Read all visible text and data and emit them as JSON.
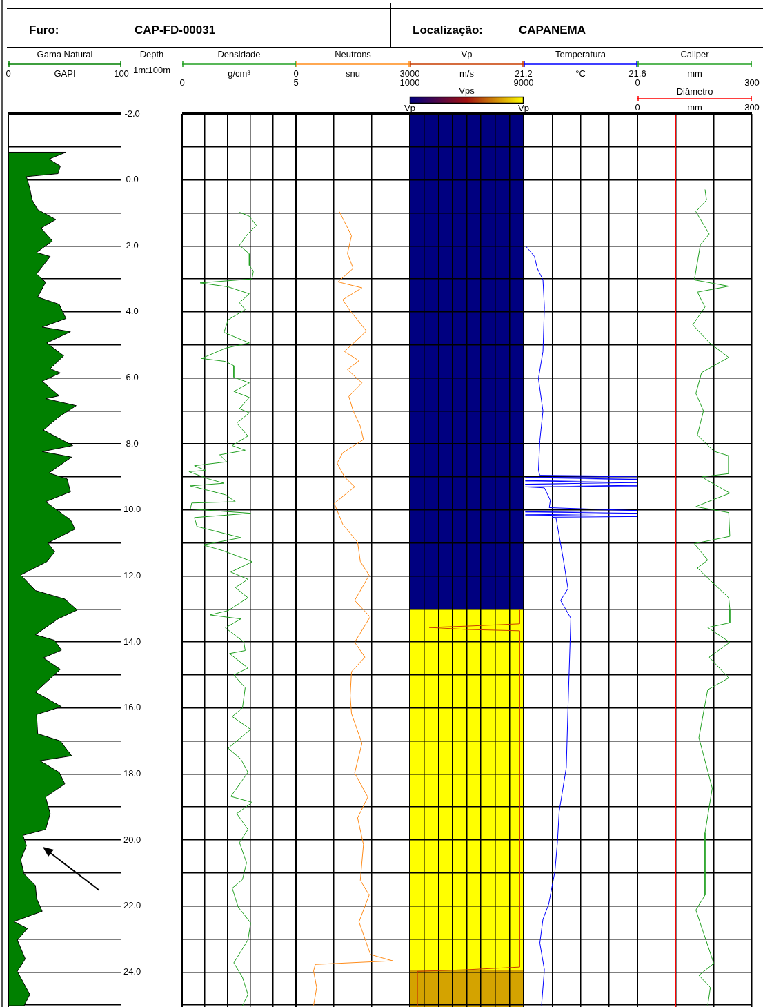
{
  "chart_data": [
    {
      "type": "other",
      "annotations": [
        "Furo:",
        "CAP-FD-00031",
        "Localização:",
        "CAPANEMA"
      ]
    },
    {
      "type": "area",
      "title": "Gama Natural",
      "xlabel": "GAPI",
      "ylabel": "Depth",
      "annotations": [
        "1m:100m"
      ],
      "xlim": [
        0,
        100
      ],
      "xticks": [
        0,
        100
      ],
      "ylim": [
        25.06,
        -2
      ],
      "yticks": [
        {
          "value": -2,
          "label": "-2.0"
        },
        {
          "value": -1,
          "label": null
        },
        {
          "value": 0,
          "label": "0.0"
        },
        {
          "value": 1,
          "label": null
        },
        {
          "value": 2,
          "label": "2.0"
        },
        {
          "value": 3,
          "label": null
        },
        {
          "value": 4,
          "label": "4.0"
        },
        {
          "value": 5,
          "label": null
        },
        {
          "value": 6,
          "label": "6.0"
        },
        {
          "value": 7,
          "label": null
        },
        {
          "value": 8,
          "label": "8.0"
        },
        {
          "value": 9,
          "label": null
        },
        {
          "value": 10,
          "label": "10.0"
        },
        {
          "value": 11,
          "label": null
        },
        {
          "value": 12,
          "label": "12.0"
        },
        {
          "value": 13,
          "label": null
        },
        {
          "value": 14,
          "label": "14.0"
        },
        {
          "value": 15,
          "label": null
        },
        {
          "value": 16,
          "label": "16.0"
        },
        {
          "value": 17,
          "label": null
        },
        {
          "value": 18,
          "label": "18.0"
        },
        {
          "value": 19,
          "label": null
        },
        {
          "value": 20,
          "label": "20.0"
        },
        {
          "value": 21,
          "label": null
        },
        {
          "value": 22,
          "label": "22.0"
        },
        {
          "value": 23,
          "label": null
        },
        {
          "value": 24,
          "label": "24.0"
        },
        {
          "value": 25,
          "label": null
        }
      ],
      "grid": "y",
      "series": [
        {
          "color": "#008000",
          "x": [
            0,
            51,
            36,
            46,
            44,
            16,
            19,
            21,
            26,
            42,
            29,
            39,
            25,
            37,
            25,
            33,
            26,
            45,
            51,
            30,
            55,
            34,
            49,
            37,
            46,
            30,
            45,
            33,
            60,
            44,
            31,
            57,
            30,
            56,
            36,
            52,
            55,
            33,
            55,
            59,
            35,
            41,
            34,
            11,
            24,
            50,
            61,
            44,
            24,
            41,
            47,
            31,
            46,
            24,
            47,
            25,
            26,
            46,
            56,
            28,
            45,
            50,
            33,
            37,
            33,
            13,
            16,
            11,
            14,
            24,
            25,
            30,
            5,
            17,
            8,
            15,
            8,
            19,
            14,
            0
          ],
          "values": [
            -0.84,
            -0.84,
            -0.63,
            -0.42,
            -0.19,
            -0.1,
            0.25,
            0.6,
            0.9,
            1.2,
            1.46,
            1.85,
            2.2,
            2.32,
            2.85,
            3.1,
            3.55,
            3.77,
            4.2,
            4.46,
            4.6,
            4.94,
            5.33,
            5.72,
            5.85,
            6.1,
            6.54,
            6.63,
            6.84,
            7.2,
            7.58,
            8.05,
            8.23,
            8.4,
            8.88,
            9.06,
            9.45,
            9.75,
            10.3,
            10.58,
            11.0,
            11.27,
            11.57,
            11.97,
            12.44,
            12.7,
            13.03,
            13.3,
            13.78,
            13.95,
            14.25,
            14.48,
            14.83,
            15.52,
            15.96,
            16.2,
            16.78,
            17.0,
            17.45,
            17.6,
            17.95,
            18.3,
            18.7,
            19.2,
            19.68,
            19.86,
            20.17,
            20.6,
            21.03,
            21.38,
            21.77,
            22.16,
            22.47,
            22.68,
            23.03,
            23.6,
            23.98,
            24.68,
            25.02,
            25.02
          ]
        }
      ]
    },
    {
      "type": "line",
      "title": "Densidade",
      "xlabel": "g/cm³",
      "xlim": [
        0,
        5
      ],
      "xticks": [
        0,
        {
          "value": 1,
          "label": null
        },
        {
          "value": 2,
          "label": null
        },
        {
          "value": 3,
          "label": null
        },
        {
          "value": 4,
          "label": null
        },
        5
      ],
      "ylim": [
        25.06,
        -2
      ],
      "tick_labels": "x",
      "grid": true,
      "yticks": [
        -2,
        -1,
        0,
        1,
        2,
        3,
        4,
        5,
        6,
        7,
        8,
        9,
        10,
        11,
        12,
        13,
        14,
        15,
        16,
        17,
        18,
        19,
        20,
        21,
        22,
        23,
        24,
        25
      ],
      "series": [
        {
          "color": "#22a022",
          "x": [
            2.52,
            2.95,
            3.26,
            2.89,
            2.52,
            2.95,
            2.95,
            3.13,
            3.07,
            0.79,
            2.02,
            2.95,
            2.52,
            2.77,
            2.02,
            1.84,
            2.95,
            1.9,
            0.85,
            1.9,
            2.27,
            2.27,
            2.95,
            2.27,
            2.95,
            2.52,
            2.95,
            2.4,
            2.89,
            2.2,
            2.77,
            1.65,
            1.96,
            0.54,
            1.04,
            0.3,
            1.16,
            1.84,
            0.36,
            1.9,
            2.34,
            0.42,
            0.36,
            3.01,
            0.54,
            0.65,
            2.58,
            0.92,
            1.78,
            2.95,
            3.08,
            2.14,
            2.89,
            2.34,
            2.89,
            2.02,
            1.22,
            2.58,
            1.9,
            2.71,
            2.77,
            2.08,
            2.89,
            2.27,
            2.77,
            2.65,
            2.2,
            3.01,
            2.02,
            2.58,
            2.89,
            2.14,
            3.08,
            2.4,
            2.89,
            2.52,
            2.83,
            2.65,
            2.2,
            2.46,
            3.01,
            2.89,
            2.27,
            2.65,
            2.89,
            2.65
          ],
          "values": [
            0.98,
            1.1,
            1.38,
            1.63,
            1.98,
            2.24,
            2.59,
            2.76,
            3.0,
            3.12,
            3.24,
            3.45,
            3.72,
            3.93,
            4.24,
            4.62,
            4.94,
            5.1,
            5.41,
            5.5,
            5.63,
            5.98,
            6.15,
            6.41,
            6.59,
            6.93,
            7.06,
            7.37,
            7.76,
            8.05,
            8.19,
            8.33,
            8.54,
            8.66,
            8.8,
            8.84,
            9.06,
            9.19,
            9.27,
            9.54,
            9.75,
            9.79,
            9.97,
            10.1,
            10.23,
            10.5,
            10.84,
            11.06,
            11.23,
            11.53,
            11.57,
            11.88,
            12.1,
            12.35,
            12.66,
            13.05,
            13.18,
            13.3,
            13.57,
            14.0,
            14.26,
            14.35,
            14.79,
            15.0,
            15.39,
            16.0,
            16.26,
            16.65,
            17.22,
            17.55,
            17.95,
            18.68,
            18.86,
            19.2,
            19.68,
            20.08,
            20.69,
            21.2,
            21.46,
            22.03,
            22.51,
            23.03,
            23.72,
            24.16,
            24.68,
            25.02
          ]
        }
      ]
    },
    {
      "type": "line",
      "title": "Neutrons",
      "xlabel": "snu",
      "xlim": [
        0,
        3000
      ],
      "xticks": [
        0,
        {
          "value": 1000,
          "label": null
        },
        {
          "value": 2000,
          "label": null
        },
        3000
      ],
      "ylim": [
        25.06,
        -2
      ],
      "tick_labels": "x",
      "grid": true,
      "yticks": [
        -2,
        -1,
        0,
        1,
        2,
        3,
        4,
        5,
        6,
        7,
        8,
        9,
        10,
        11,
        12,
        13,
        14,
        15,
        16,
        17,
        18,
        19,
        20,
        21,
        22,
        23,
        24,
        25
      ],
      "series": [
        {
          "color": "#ff8c1a",
          "x": [
            1143,
            1464,
            1357,
            1509,
            1107,
            1739,
            1232,
            1411,
            1857,
            1279,
            1661,
            1357,
            1739,
            1393,
            1509,
            1696,
            1779,
            1232,
            1086,
            1279,
            1548,
            1009,
            1232,
            1625,
            1696,
            1929,
            1548,
            1955,
            1548,
            1818,
            1464,
            1429,
            1464,
            1739,
            1548,
            1893,
            1625,
            1779,
            1696,
            1929,
            1661,
            1964,
            2548,
            509,
            464,
            546,
            464
          ],
          "values": [
            0.96,
            1.69,
            2.23,
            2.68,
            3.09,
            3.27,
            3.63,
            3.94,
            4.58,
            5.2,
            5.48,
            5.75,
            6.15,
            6.56,
            7.0,
            7.46,
            7.87,
            8.27,
            8.58,
            9.0,
            9.3,
            9.8,
            10.43,
            10.98,
            11.56,
            11.98,
            12.74,
            13.24,
            14.01,
            14.46,
            14.9,
            15.63,
            16.17,
            17.07,
            17.97,
            18.7,
            19.33,
            20.14,
            21.22,
            21.67,
            22.48,
            23.47,
            23.66,
            23.77,
            23.97,
            24.47,
            25.01
          ]
        }
      ]
    },
    {
      "type": "line",
      "title": "Vp",
      "xlabel": "m/s",
      "xlim": [
        1000,
        9000
      ],
      "xticks": [
        1000,
        {
          "value": 2000,
          "label": null
        },
        {
          "value": 3000,
          "label": null
        },
        {
          "value": 4000,
          "label": null
        },
        {
          "value": 5000,
          "label": null
        },
        {
          "value": 6000,
          "label": null
        },
        {
          "value": 7000,
          "label": null
        },
        {
          "value": 8000,
          "label": null
        },
        9000
      ],
      "ylim": [
        25.06,
        -2
      ],
      "tick_labels": "x",
      "grid": true,
      "clabel": "Vps",
      "clim": [
        1000,
        9000
      ],
      "cticks": [
        {
          "value": 1000,
          "label": "Vp"
        },
        {
          "value": 9000,
          "label": "Vp"
        }
      ],
      "bands": [
        {
          "axis": "y",
          "from": -2,
          "to": 13,
          "color": "#000080"
        },
        {
          "axis": "y",
          "from": 13,
          "to": 23.95,
          "color": "#ffff00"
        },
        {
          "axis": "y",
          "from": 23.95,
          "to": 25.06,
          "color": "#d4a300"
        }
      ],
      "yticks": [
        -2,
        -1,
        0,
        1,
        2,
        3,
        4,
        5,
        6,
        7,
        8,
        9,
        10,
        11,
        12,
        13,
        14,
        15,
        16,
        17,
        18,
        19,
        20,
        21,
        22,
        23,
        24,
        25
      ],
      "series": [
        {
          "color": "#c83c00",
          "x": [
            8714,
            8714,
            5000,
            2362,
            5000,
            8714,
            8714,
            5000,
            1524,
            1524
          ],
          "values": [
            13.0,
            13.45,
            13.52,
            13.56,
            13.62,
            13.66,
            23.85,
            23.93,
            23.98,
            25.05
          ]
        }
      ]
    },
    {
      "type": "line",
      "title": "Temperatura",
      "xlabel": "°C",
      "xlim": [
        21.2,
        21.6
      ],
      "xticks": [
        21.2,
        {
          "value": 21.3,
          "label": null
        },
        {
          "value": 21.4,
          "label": null
        },
        {
          "value": 21.5,
          "label": null
        },
        21.6
      ],
      "ylim": [
        25.06,
        -2
      ],
      "tick_labels": "x",
      "grid": true,
      "yticks": [
        -2,
        -1,
        0,
        1,
        2,
        3,
        4,
        5,
        6,
        7,
        8,
        9,
        10,
        11,
        12,
        13,
        14,
        15,
        16,
        17,
        18,
        19,
        20,
        21,
        22,
        23,
        24,
        25
      ],
      "series": [
        {
          "color": "#0000ff",
          "x": [
            21.207,
            21.238,
            21.248,
            21.268,
            21.273,
            21.268,
            21.252,
            21.268,
            21.257,
            21.252,
            21.257,
            21.6,
            21.206,
            21.6,
            21.206,
            21.6,
            21.206,
            21.6,
            21.206,
            21.273,
            21.294,
            21.29,
            21.6,
            21.206,
            21.6,
            21.206,
            21.6,
            21.3,
            21.314,
            21.34,
            21.356,
            21.33,
            21.366,
            21.356,
            21.35,
            21.325,
            21.319,
            21.31,
            21.288,
            21.268,
            21.257,
            21.273,
            21.263
          ],
          "values": [
            2.0,
            2.32,
            2.68,
            3.03,
            3.85,
            5.2,
            6.02,
            7.0,
            7.9,
            8.8,
            8.95,
            8.98,
            9.02,
            9.07,
            9.12,
            9.17,
            9.22,
            9.27,
            9.3,
            9.33,
            9.71,
            9.93,
            10.02,
            10.06,
            10.1,
            10.15,
            10.2,
            10.22,
            10.25,
            11.52,
            12.38,
            12.74,
            13.28,
            15.99,
            17.8,
            19.14,
            20.05,
            20.95,
            21.95,
            22.4,
            23.12,
            23.93,
            25.01
          ]
        }
      ]
    },
    {
      "type": "line",
      "title": "Caliper",
      "xlabel": "mm",
      "xlim": [
        0,
        300
      ],
      "xticks": [
        0,
        {
          "value": 100,
          "label": null
        },
        {
          "value": 200,
          "label": null
        },
        300
      ],
      "x2label": "mm",
      "x2lim": [
        0,
        300
      ],
      "x2ticks": [
        0,
        300
      ],
      "ylim": [
        25.06,
        -2
      ],
      "tick_labels": "x",
      "grid": true,
      "yticks": [
        -2,
        -1,
        0,
        1,
        2,
        3,
        4,
        5,
        6,
        7,
        8,
        9,
        10,
        11,
        12,
        13,
        14,
        15,
        16,
        17,
        18,
        19,
        20,
        21,
        22,
        23,
        24,
        25
      ],
      "series": [
        {
          "color": "#22a022",
          "x": [
            177,
            181,
            153,
            188,
            165,
            149,
            239,
            157,
            177,
            145,
            188,
            239,
            168,
            153,
            173,
            157,
            200,
            239,
            239,
            168,
            242,
            153,
            239,
            242,
            149,
            184,
            157,
            239,
            242,
            242,
            184,
            242,
            188,
            239,
            184,
            161,
            196,
            177,
            177,
            153,
            200,
            161,
            191,
            184
          ],
          "values": [
            0.29,
            0.61,
            0.96,
            1.64,
            1.96,
            3.03,
            3.22,
            3.4,
            3.85,
            4.39,
            4.93,
            5.38,
            5.84,
            6.47,
            7.0,
            7.73,
            8.22,
            8.36,
            8.9,
            9.0,
            9.49,
            9.9,
            10.08,
            10.8,
            11.02,
            11.52,
            11.76,
            12.66,
            13.0,
            13.42,
            13.56,
            14.01,
            14.46,
            15.09,
            15.45,
            16.9,
            18.43,
            19.78,
            21.67,
            22.12,
            23.74,
            24.1,
            24.47,
            25.01
          ]
        },
        {
          "name": "Diâmetro",
          "axis": "x2",
          "color": "#ff0000",
          "x": [
            100,
            100
          ],
          "values": [
            -2,
            25.06
          ]
        }
      ]
    }
  ]
}
